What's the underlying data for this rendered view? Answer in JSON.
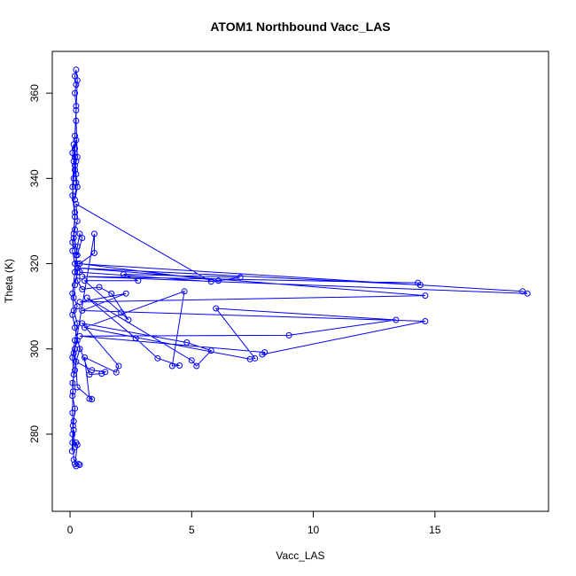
{
  "chart_data": {
    "type": "line",
    "title": "ATOM1 Northbound Vacc_LAS",
    "xlabel": "Vacc_LAS",
    "ylabel": "Theta (K)",
    "x": [
      0.1,
      0.12,
      0.08,
      0.15,
      0.2,
      0.25,
      0.3,
      0.2,
      0.25,
      0.35,
      0.4,
      0.15,
      0.1,
      0.12,
      0.1,
      0.2,
      0.15,
      0.3,
      0.8,
      1.3,
      1.45,
      0.9,
      0.25,
      0.4,
      0.2,
      0.1,
      0.3,
      0.15,
      0.2,
      0.3,
      0.25,
      0.1,
      0.2,
      0.3,
      0.25,
      5.8,
      0.4,
      0.3,
      18.6,
      18.8,
      0.5,
      14.3,
      14.4,
      0.3,
      14.6,
      0.4,
      2.3,
      0.5,
      14.6,
      7.9,
      8.0,
      0.4,
      9.0,
      13.4,
      6.0,
      7.6,
      7.4,
      0.6,
      4.7,
      4.2,
      4.5,
      3.6,
      2.7,
      0.7,
      5.0,
      5.2,
      5.8,
      4.8,
      0.5,
      2.0,
      1.9,
      0.6,
      0.8,
      0.9,
      0.3,
      0.2,
      1.0,
      1.0,
      0.4,
      6.1,
      7.0,
      2.2,
      2.8,
      0.6,
      2.1,
      2.4,
      1.7,
      1.2,
      0.5,
      0.3,
      0.2,
      0.1,
      0.15,
      0.2,
      0.1,
      0.15,
      0.2,
      0.1,
      0.15,
      0.2,
      0.25,
      0.3,
      0.2,
      0.25,
      0.2,
      0.25,
      0.2,
      0.25,
      0.3,
      0.25,
      0.25,
      0.2,
      0.25,
      0.2,
      0.25,
      0.3,
      0.25,
      0.2,
      0.15,
      0.1,
      0.2,
      0.15,
      0.3,
      0.5,
      0.4,
      0.3,
      0.2,
      0.1,
      0.15,
      0.3,
      0.2,
      0.1,
      0.15,
      0.1,
      0.2,
      0.15,
      0.1
    ],
    "series": [
      {
        "color": "#0000ff",
        "values": [
          278,
          282,
          276,
          281,
          277,
          278,
          277.5,
          273,
          272.5,
          273,
          272.8,
          274,
          285,
          290,
          292,
          295,
          299,
          302,
          294,
          294.2,
          294.6,
          295,
          297,
          300,
          305,
          308,
          310,
          312,
          315,
          318,
          322,
          325,
          328,
          330,
          334,
          315.8,
          318,
          320,
          313.5,
          313,
          317,
          315.5,
          315,
          319,
          312.5,
          311,
          313,
          309,
          306.5,
          298.7,
          299.2,
          303,
          303.2,
          306.8,
          309.5,
          297.8,
          297.6,
          305,
          313.5,
          296,
          296.1,
          297.8,
          302.5,
          312,
          297.3,
          296,
          299.6,
          301.5,
          306,
          296,
          294.5,
          298,
          288.3,
          288.2,
          291,
          300,
          327,
          322.5,
          320,
          316,
          316.8,
          317.5,
          316,
          316,
          308.5,
          306.8,
          313,
          314.5,
          314,
          316,
          320,
          323,
          326,
          331,
          336,
          340,
          343,
          346,
          348,
          345,
          341,
          338,
          335,
          339,
          342,
          344,
          347,
          349,
          345,
          353.5,
          357,
          360,
          362,
          364,
          365.5,
          363,
          356,
          350,
          344,
          338,
          332,
          327,
          322,
          326,
          327,
          324,
          318,
          313,
          309,
          306,
          302,
          298,
          294,
          289,
          286,
          283,
          280
        ]
      }
    ],
    "xlim": [
      -0.73,
      19.67
    ],
    "xticks": [
      0,
      5,
      10,
      15
    ],
    "ylim": [
      261.9,
      369.8
    ],
    "yticks": [
      280,
      300,
      320,
      340,
      360
    ]
  }
}
